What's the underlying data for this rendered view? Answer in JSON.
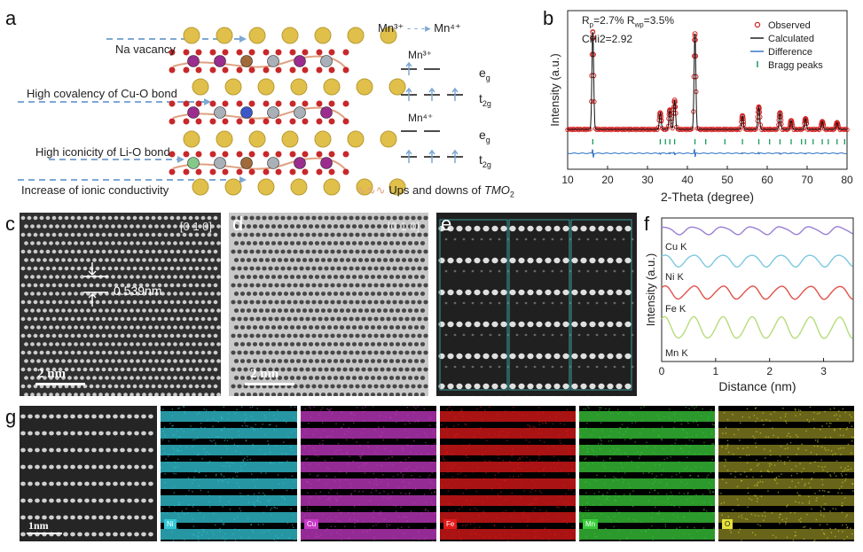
{
  "panel_labels": {
    "a": "a",
    "b": "b",
    "c": "c",
    "d": "d",
    "e": "e",
    "f": "f",
    "g": "g"
  },
  "panel_a": {
    "annotations": [
      "Na vacancy",
      "High covalency of Cu-O bond",
      "High iconicity of Li-O bond",
      "Increase of ionic conductivity"
    ],
    "mn_transition": {
      "from": "Mn³⁺",
      "to": "Mn⁴⁺"
    },
    "mn3_title": "Mn³⁺",
    "mn4_title": "Mn⁴⁺",
    "eg": "e",
    "eg_sub": "g",
    "t2g": "t",
    "t2g_sub": "2g",
    "legend_text": "Ups and downs of ",
    "legend_italic": "TMO",
    "legend_sub": "2",
    "colors": {
      "na": "#e0c04a",
      "o": "#c8282a",
      "mn": "#9b2d8e",
      "cu": "#a06a3a",
      "ni": "#aab0b8",
      "fe": "#3b57c8",
      "li": "#86c88a",
      "arrow": "#7fa8d4"
    }
  },
  "panel_c": {
    "zone": "[0 1 0]",
    "spacing": "0.539nm",
    "scalebar": "2 nm"
  },
  "panel_d": {
    "zone": "[0 1 0]",
    "scalebar": "2 nm"
  },
  "panel_g": {
    "scalebar": "1nm",
    "maps": [
      {
        "element": "Ni",
        "color": "#33c8d8"
      },
      {
        "element": "Cu",
        "color": "#c63ac6"
      },
      {
        "element": "Fe",
        "color": "#e21a1a"
      },
      {
        "element": "Mn",
        "color": "#3acc3a"
      },
      {
        "element": "O",
        "color": "#e6e03a"
      }
    ]
  },
  "chart_data": [
    {
      "type": "line",
      "panel": "b",
      "xlabel": "2-Theta (degree)",
      "ylabel": "Intensity (a.u.)",
      "xlim": [
        10,
        80
      ],
      "xticks": [
        10,
        20,
        30,
        40,
        50,
        60,
        70,
        80
      ],
      "annotation_lines": [
        "R",
        "p",
        "=2.7% R",
        "wp",
        "=3.5%",
        "CHi2=2.92"
      ],
      "legend": [
        "Observed",
        "Calculated",
        "Difference",
        "Bragg peaks"
      ],
      "legend_position": "top-right",
      "colors": {
        "observed": "#d42020",
        "calculated": "#111111",
        "difference": "#2a6fc2",
        "bragg": "#1a9a5a"
      },
      "peaks": [
        {
          "x": 16.3,
          "y": 100
        },
        {
          "x": 33.2,
          "y": 17
        },
        {
          "x": 35.6,
          "y": 20
        },
        {
          "x": 36.8,
          "y": 30
        },
        {
          "x": 41.9,
          "y": 98
        },
        {
          "x": 53.8,
          "y": 14
        },
        {
          "x": 57.9,
          "y": 23
        },
        {
          "x": 63.2,
          "y": 17
        },
        {
          "x": 66.0,
          "y": 9
        },
        {
          "x": 69.6,
          "y": 11
        },
        {
          "x": 73.8,
          "y": 8
        },
        {
          "x": 77.5,
          "y": 7
        }
      ],
      "bragg_positions": [
        16.3,
        33.2,
        34.5,
        35.6,
        36.8,
        41.9,
        44.6,
        49.4,
        53.8,
        57.9,
        60.6,
        63.2,
        66.0,
        68.6,
        69.6,
        71.5,
        73.8,
        75.3,
        77.5,
        79.4
      ]
    },
    {
      "type": "line",
      "panel": "f",
      "xlabel": "Distance (nm)",
      "ylabel": "Intensity (a.u.)",
      "xlim": [
        0,
        3.55
      ],
      "xticks": [
        0,
        1,
        2,
        3
      ],
      "series": [
        {
          "name": "Cu K",
          "color": "#9a7fd6",
          "amplitude": 0.35,
          "offset": 0.0
        },
        {
          "name": "Ni K",
          "color": "#7cc8e0",
          "amplitude": 0.55,
          "offset": 1.0
        },
        {
          "name": "Fe K",
          "color": "#e0524a",
          "amplitude": 0.6,
          "offset": 2.0
        },
        {
          "name": "Mn K",
          "color": "#b6dc7a",
          "amplitude": 1.0,
          "offset": 3.2
        }
      ],
      "period_nm": 0.54
    }
  ]
}
